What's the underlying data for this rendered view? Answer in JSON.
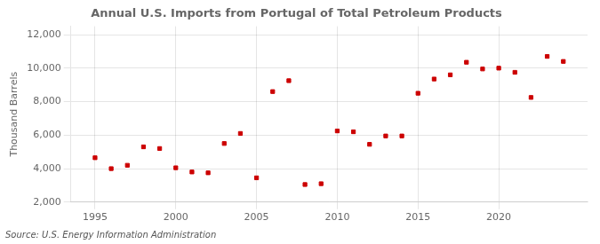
{
  "chart_data": {
    "type": "scatter",
    "title": "Annual U.S. Imports from Portugal of Total Petroleum Products",
    "ylabel": "Thousand Barrels",
    "annotations": [
      "Source: U.S. Energy Information Administration"
    ],
    "x": [
      1995,
      1996,
      1997,
      1998,
      1999,
      2000,
      2001,
      2002,
      2003,
      2004,
      2005,
      2006,
      2007,
      2008,
      2009,
      2010,
      2011,
      2012,
      2013,
      2014,
      2015,
      2016,
      2017,
      2018,
      2019,
      2020,
      2021,
      2022,
      2023,
      2024
    ],
    "values": [
      4650,
      4000,
      4200,
      5300,
      5200,
      4050,
      3800,
      3750,
      5500,
      6100,
      3450,
      8600,
      9250,
      3050,
      3100,
      6250,
      6200,
      5450,
      5950,
      5950,
      8500,
      9350,
      9600,
      10350,
      9950,
      10000,
      9750,
      8250,
      10700,
      10400
    ],
    "color": "#cc0000",
    "marker": "square",
    "xlim": [
      1993.5,
      2025.5
    ],
    "ylim": [
      2000,
      12500
    ],
    "xticks": [
      1995,
      2000,
      2005,
      2010,
      2015,
      2020
    ],
    "yticks": [
      {
        "value": 2000,
        "label": "2,000"
      },
      {
        "value": 4000,
        "label": "4,000"
      },
      {
        "value": 6000,
        "label": "6,000"
      },
      {
        "value": 8000,
        "label": "8,000"
      },
      {
        "value": 10000,
        "label": "10,000"
      },
      {
        "value": 12000,
        "label": "12,000"
      }
    ],
    "grid": true
  }
}
